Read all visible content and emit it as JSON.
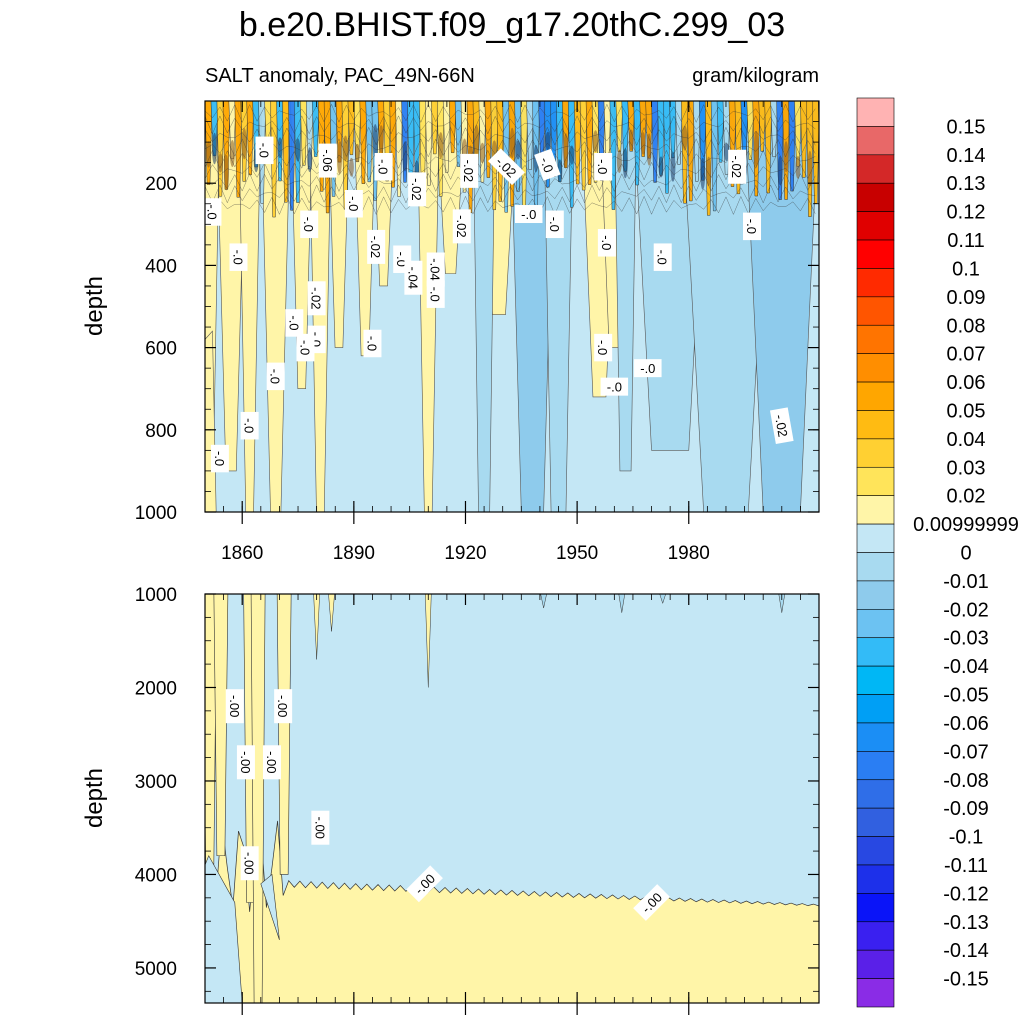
{
  "chart_data": {
    "type": "heatmap",
    "title": "b.e20.BHIST.f09_g17.20thC.299_03",
    "subtitle_left": "SALT anomaly, PAC_49N-66N",
    "subtitle_right": "gram/kilogram",
    "ylabel": "depth",
    "xlim": [
      1850,
      2015
    ],
    "x_ticks": [
      1860,
      1890,
      1920,
      1950,
      1980
    ],
    "x_tick_labels": [
      "1860",
      "1890",
      "1920",
      "1950",
      "1980"
    ],
    "upper_panel": {
      "ylim": [
        0,
        1000
      ],
      "y_ticks": [
        200,
        400,
        600,
        800,
        1000
      ],
      "y_tick_labels": [
        "200",
        "400",
        "600",
        "800",
        "1000"
      ]
    },
    "lower_panel": {
      "ylim": [
        1000,
        5375
      ],
      "y_ticks": [
        1000,
        2000,
        3000,
        4000,
        5000
      ],
      "y_tick_labels": [
        "1000",
        "2000",
        "3000",
        "4000",
        "5000"
      ]
    },
    "colorbar": {
      "labels": [
        "0.15",
        "0.14",
        "0.13",
        "0.12",
        "0.11",
        "0.1",
        "0.09",
        "0.08",
        "0.07",
        "0.06",
        "0.05",
        "0.04",
        "0.03",
        "0.02",
        "0.00999999",
        "0",
        "-0.01",
        "-0.02",
        "-0.03",
        "-0.04",
        "-0.05",
        "-0.06",
        "-0.07",
        "-0.08",
        "-0.09",
        "-0.1",
        "-0.11",
        "-0.12",
        "-0.13",
        "-0.14",
        "-0.15"
      ],
      "colors": [
        "#ffb3b3",
        "#e86868",
        "#d42828",
        "#c80000",
        "#e00000",
        "#ff0000",
        "#ff2a00",
        "#ff5500",
        "#ff7400",
        "#ff8e00",
        "#ffa600",
        "#ffbb12",
        "#ffd032",
        "#ffe45a",
        "#fff5a8",
        "#c4e7f5",
        "#a8daf0",
        "#8ecbec",
        "#6cc2f2",
        "#33bbf7",
        "#00b7f5",
        "#009ff5",
        "#1b8ef5",
        "#2a7ef3",
        "#2f6ee8",
        "#3160e0",
        "#2848e2",
        "#1d30ea",
        "#0a14f8",
        "#3a20f0",
        "#5a20e8",
        "#8a2ce6"
      ]
    },
    "contour_labels_upper": [
      "-.0",
      "-.0",
      "-.0",
      "-.0",
      "-.0",
      "-.02",
      "-.0",
      "-.02",
      "-.04",
      "-.06",
      "-.0",
      "-.02",
      "-.02",
      "-.0",
      "-.04",
      "-.0",
      "-.02",
      "-.02",
      "-.0",
      "-.0",
      "-.0",
      "-.0",
      "-.0",
      "-.0",
      "-.0",
      "-.0",
      "-.0",
      "-.0",
      "-.0",
      "-.0",
      "-.0",
      "-.0",
      "-.0",
      "-.02",
      "-.0",
      "-.02"
    ],
    "contour_labels_lower": [
      "-.00",
      "-.00",
      "-.00",
      "-.00",
      "-.00",
      "-.00",
      "-.00",
      "-.00"
    ]
  }
}
